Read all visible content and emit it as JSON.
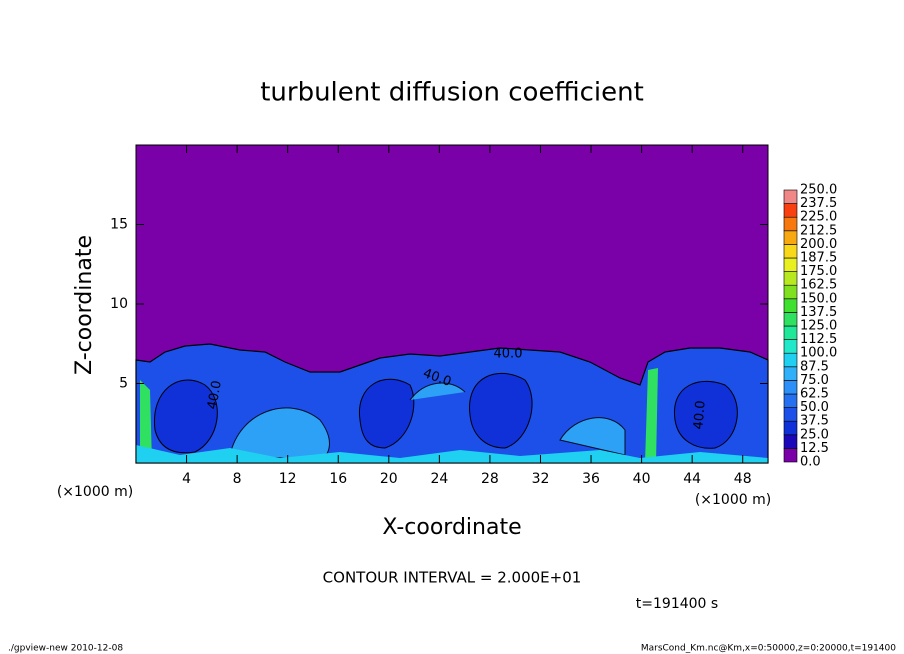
{
  "chart_data": {
    "type": "contour",
    "title": "turbulent diffusion coefficient",
    "xlabel": "X-coordinate",
    "ylabel": "Z-coordinate",
    "axis_unit_label": "(×1000 m)",
    "xlim": [
      0,
      50
    ],
    "ylim": [
      0,
      20
    ],
    "xticks": [
      4,
      8,
      12,
      16,
      20,
      24,
      28,
      32,
      36,
      40,
      44,
      48
    ],
    "yticks": [
      5,
      10,
      15
    ],
    "contour_labels": [
      "40.0",
      "40.0",
      "40.0",
      "40.0"
    ],
    "colorbar": {
      "levels": [
        {
          "value": 0,
          "label": "0.0"
        },
        12.5,
        {
          "value": 25,
          "label": "25.0"
        },
        37.5,
        {
          "value": 50,
          "label": "50.0"
        },
        62.5,
        {
          "value": 75,
          "label": "75.0"
        },
        87.5,
        {
          "value": 100,
          "label": "100.0"
        },
        112.5,
        {
          "value": 125,
          "label": "125.0"
        },
        137.5,
        {
          "value": 150,
          "label": "150.0"
        },
        162.5,
        {
          "value": 175,
          "label": "175.0"
        },
        187.5,
        {
          "value": 200,
          "label": "200.0"
        },
        212.5,
        {
          "value": 225,
          "label": "225.0"
        },
        237.5,
        {
          "value": 250,
          "label": "250.0"
        }
      ],
      "colors": [
        "#7a00a8",
        "#1c08b8",
        "#1030d8",
        "#1c50e8",
        "#2470f0",
        "#2c90f8",
        "#30b0f8",
        "#20d0f0",
        "#20e8c8",
        "#20e898",
        "#30e060",
        "#40e030",
        "#80e020",
        "#b8e820",
        "#e8f020",
        "#f8d818",
        "#f8a810",
        "#f87810",
        "#f84010",
        "#f08888"
      ]
    },
    "annotation": "CONTOUR INTERVAL = 2.000E+01",
    "time_label": "t=191400 s",
    "footer_left": "./gpview-new   2010-12-08",
    "footer_right": "MarsCond_Km.nc@Km,x=0:50000,z=0:20000,t=191400"
  }
}
